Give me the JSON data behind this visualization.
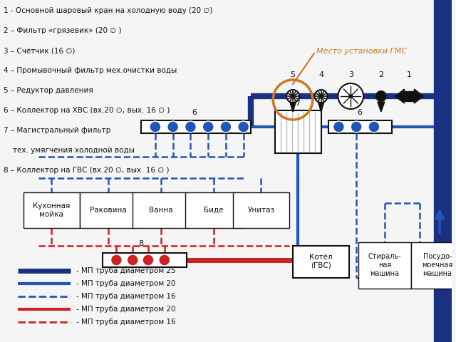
{
  "bg_color": "#f5f5f5",
  "blue_dark": "#1a3080",
  "blue_med": "#2255bb",
  "red_col": "#cc2222",
  "orange_col": "#cc7722",
  "black_col": "#111111",
  "legend_items": [
    {
      "label": "- МП труба диаметром 25",
      "color": "#1a3080",
      "lw": 5,
      "ls": "solid"
    },
    {
      "label": "- МП труба диаметром 20",
      "color": "#2255bb",
      "lw": 3,
      "ls": "solid"
    },
    {
      "label": "- МП труба диаметром 16",
      "color": "#2255bb",
      "lw": 2,
      "ls": "dashed"
    },
    {
      "label": "- МП труба диаметром 20",
      "color": "#cc2222",
      "lw": 3,
      "ls": "solid"
    },
    {
      "label": "- МП труба диаметром 16",
      "color": "#cc2222",
      "lw": 2,
      "ls": "dashed"
    }
  ],
  "left_labels": [
    "1 - Основной шаровый кран на холодную воду (20 ∅)",
    "2 – Фильтр «грязевик» (20 ∅ )",
    "3 – Счётчик (16 ∅)",
    "4 – Промывочный фильтр мех.очистки воды",
    "5 – Редуктор давления",
    "6 – Коллектор на ХВС (вх.20 ∅, вых. 16 ∅ )",
    "7 – Магистральный фильтр",
    "    тех. умягчения холодной воды",
    "8 – Коллектор на ГВС (вх.20 ∅, вых. 16 ∅ )"
  ]
}
